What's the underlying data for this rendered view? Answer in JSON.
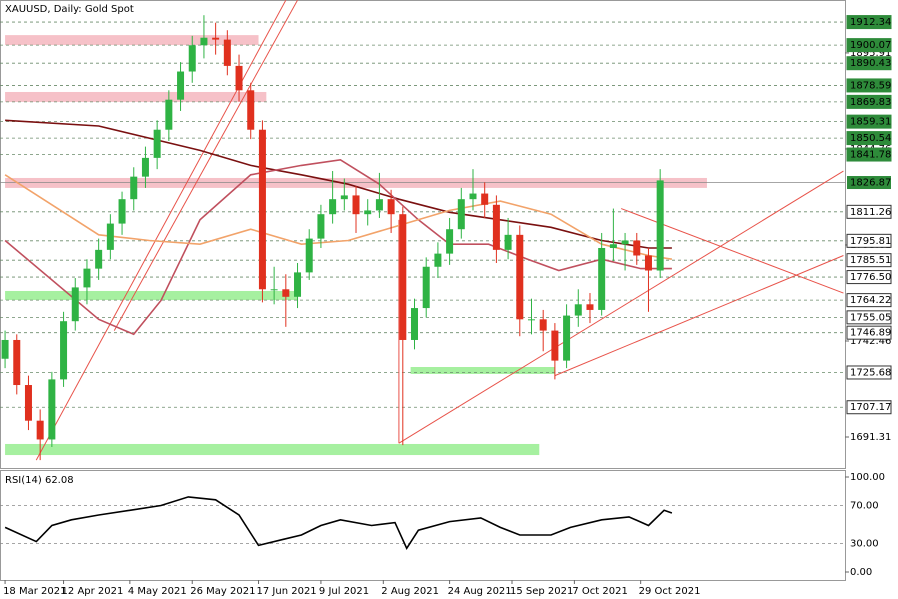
{
  "chart_data": {
    "type": "candlestick",
    "title": "XAUUSD, Daily:  Gold Spot",
    "xlim": [
      -1.3,
      215.4
    ],
    "ylim": [
      1674.8,
      1924.1
    ],
    "yticks": [
      1691.31,
      1742.46,
      1793.61,
      1844.76,
      1895.91
    ],
    "xticks": [
      {
        "value": 0,
        "label": "18 Mar 2021"
      },
      {
        "value": 15,
        "label": "12 Apr 2021"
      },
      {
        "value": 32,
        "label": "4 May 2021"
      },
      {
        "value": 48,
        "label": "26 May 2021"
      },
      {
        "value": 65,
        "label": "17 Jun 2021"
      },
      {
        "value": 81,
        "label": "9 Jul 2021"
      },
      {
        "value": 97,
        "label": "2 Aug 2021"
      },
      {
        "value": 114,
        "label": "24 Aug 2021"
      },
      {
        "value": 130,
        "label": "15 Sep 2021"
      },
      {
        "value": 146,
        "label": "7 Oct 2021"
      },
      {
        "value": 163,
        "label": "29 Oct 2021"
      }
    ],
    "up_color": "#2fb344",
    "down_color": "#e0301e",
    "x": [
      0,
      3,
      6,
      9,
      12,
      15,
      18,
      21,
      24,
      27,
      30,
      33,
      36,
      39,
      42,
      45,
      48,
      51,
      54,
      57,
      60,
      63,
      66,
      69,
      72,
      75,
      78,
      81,
      84,
      87,
      90,
      93,
      96,
      99,
      102,
      105,
      108,
      111,
      114,
      117,
      120,
      123,
      126,
      129,
      132,
      135,
      138,
      141,
      144,
      147,
      150,
      153,
      156,
      159,
      162,
      165,
      168
    ],
    "open": [
      1733,
      1743,
      1719,
      1700,
      1690,
      1722,
      1753,
      1771,
      1781,
      1791,
      1805,
      1818,
      1830,
      1840,
      1855,
      1871,
      1886,
      1900,
      1904,
      1903,
      1889,
      1876,
      1855,
      1770,
      1770,
      1766,
      1779,
      1797,
      1810,
      1818,
      1820,
      1810,
      1812,
      1818,
      1810,
      1743,
      1760,
      1782,
      1789,
      1802,
      1818,
      1821,
      1815,
      1791,
      1799,
      1754,
      1754,
      1748,
      1732,
      1756,
      1762,
      1759,
      1792,
      1794,
      1796,
      1788,
      1780
    ],
    "high": [
      1748,
      1746,
      1724,
      1706,
      1726,
      1758,
      1776,
      1786,
      1797,
      1810,
      1822,
      1835,
      1846,
      1860,
      1876,
      1891,
      1905,
      1916,
      1912,
      1908,
      1895,
      1880,
      1860,
      1782,
      1778,
      1784,
      1802,
      1815,
      1833,
      1829,
      1825,
      1818,
      1832,
      1823,
      1814,
      1765,
      1787,
      1795,
      1808,
      1824,
      1834,
      1827,
      1820,
      1808,
      1804,
      1765,
      1759,
      1752,
      1762,
      1770,
      1768,
      1800,
      1813,
      1800,
      1800,
      1792,
      1834
    ],
    "low": [
      1728,
      1714,
      1695,
      1679,
      1686,
      1718,
      1748,
      1762,
      1775,
      1786,
      1799,
      1812,
      1824,
      1834,
      1849,
      1865,
      1880,
      1893,
      1895,
      1884,
      1870,
      1850,
      1763,
      1762,
      1750,
      1760,
      1775,
      1792,
      1805,
      1812,
      1800,
      1804,
      1808,
      1800,
      1687,
      1738,
      1755,
      1776,
      1783,
      1797,
      1812,
      1808,
      1784,
      1786,
      1745,
      1746,
      1737,
      1722,
      1728,
      1750,
      1752,
      1756,
      1785,
      1780,
      1783,
      1758,
      1776
    ],
    "close": [
      1743,
      1719,
      1700,
      1690,
      1722,
      1753,
      1771,
      1781,
      1791,
      1805,
      1818,
      1830,
      1840,
      1855,
      1871,
      1886,
      1900,
      1904,
      1903,
      1889,
      1876,
      1855,
      1770,
      1770,
      1766,
      1779,
      1797,
      1810,
      1818,
      1820,
      1810,
      1812,
      1818,
      1810,
      1743,
      1760,
      1782,
      1789,
      1802,
      1818,
      1821,
      1815,
      1791,
      1799,
      1754,
      1754,
      1748,
      1732,
      1756,
      1762,
      1759,
      1792,
      1794,
      1796,
      1788,
      1780,
      1828
    ],
    "moving_averages": [
      {
        "color": "#7a1010",
        "x": [
          0,
          24,
          50,
          63,
          76,
          88,
          101,
          114,
          127,
          140,
          153,
          165,
          171
        ],
        "values": [
          1860,
          1857,
          1844,
          1836,
          1831,
          1826,
          1818,
          1811,
          1807,
          1803,
          1796,
          1792,
          1792
        ]
      },
      {
        "color": "#c0505e",
        "x": [
          0,
          24,
          33,
          40,
          50,
          63,
          76,
          86,
          96,
          106,
          114,
          124,
          134,
          142,
          153,
          163,
          171
        ],
        "values": [
          1796,
          1754,
          1746,
          1764,
          1807,
          1831,
          1836,
          1839,
          1826,
          1807,
          1794,
          1794,
          1786,
          1780,
          1786,
          1781,
          1781
        ]
      },
      {
        "color": "#f2a36a",
        "x": [
          0,
          12,
          24,
          37,
          50,
          63,
          76,
          88,
          101,
          114,
          127,
          140,
          153,
          165,
          171
        ],
        "values": [
          1831,
          1815,
          1799,
          1796,
          1794,
          1802,
          1794,
          1796,
          1804,
          1812,
          1817,
          1810,
          1794,
          1788,
          1786
        ]
      }
    ],
    "zones": [
      {
        "color": "#f6c1c8",
        "x": [
          0,
          65
        ],
        "y": [
          1900.1,
          1905.4
        ]
      },
      {
        "color": "#f6c1c8",
        "x": [
          0,
          67
        ],
        "y": [
          1869.8,
          1875.1
        ]
      },
      {
        "color": "#f6c1c8",
        "x": [
          0,
          180
        ],
        "y": [
          1824.0,
          1829.3
        ]
      },
      {
        "color": "#a6f0a0",
        "x": [
          0,
          75
        ],
        "y": [
          1764.3,
          1769.1
        ]
      },
      {
        "color": "#a6f0a0",
        "x": [
          104,
          141
        ],
        "y": [
          1724.9,
          1728.6
        ]
      },
      {
        "color": "#a6f0a0",
        "x": [
          0,
          137
        ],
        "y": [
          1681.7,
          1687.6
        ]
      }
    ],
    "trendlines": [
      {
        "x": [
          8,
          72
        ],
        "y": [
          1679,
          1924
        ]
      },
      {
        "x": [
          28,
          75
        ],
        "y": [
          1748,
          1924
        ]
      },
      {
        "x": [
          101,
          215
        ],
        "y": [
          1688,
          1833
        ]
      },
      {
        "x": [
          141,
          215
        ],
        "y": [
          1724,
          1788
        ]
      },
      {
        "x": [
          158,
          215
        ],
        "y": [
          1813,
          1768
        ]
      },
      {
        "x": [
          101,
          101
        ],
        "y": [
          1688,
          1807
        ]
      }
    ],
    "trendline_color": "#e8534a",
    "levels_green": [
      1912.34,
      1900.07,
      1890.43,
      1878.59,
      1869.83,
      1859.31,
      1850.54,
      1841.78
    ],
    "levels_white": [
      1811.26,
      1795.81,
      1785.51,
      {
        "value": 1776.5,
        "label": "1776.50"
      },
      1764.22,
      1755.05,
      1746.89,
      1725.68,
      1707.17
    ],
    "last_price": 1826.87,
    "rsi": {
      "title": "RSI(14) 62.08",
      "color": "#000000",
      "ylim": [
        0,
        100
      ],
      "yticks": [
        {
          "value": 100,
          "label": "100.00"
        },
        {
          "value": 70,
          "label": "70.00"
        },
        {
          "value": 30,
          "label": "30.00"
        },
        {
          "value": 0,
          "label": "0.00"
        }
      ],
      "x": [
        0,
        8,
        12,
        17,
        24,
        32,
        40,
        47,
        54,
        60,
        65,
        71,
        76,
        81,
        86,
        94,
        100,
        103,
        106,
        114,
        122,
        127,
        132,
        140,
        145,
        153,
        160,
        165,
        169,
        171
      ],
      "values": [
        47,
        32,
        49,
        55,
        60,
        65,
        70,
        79,
        76,
        60,
        28,
        34,
        39,
        49,
        55,
        49,
        52,
        25,
        44,
        53,
        57,
        47,
        39,
        39,
        47,
        55,
        58,
        49,
        65,
        62.08
      ]
    }
  }
}
